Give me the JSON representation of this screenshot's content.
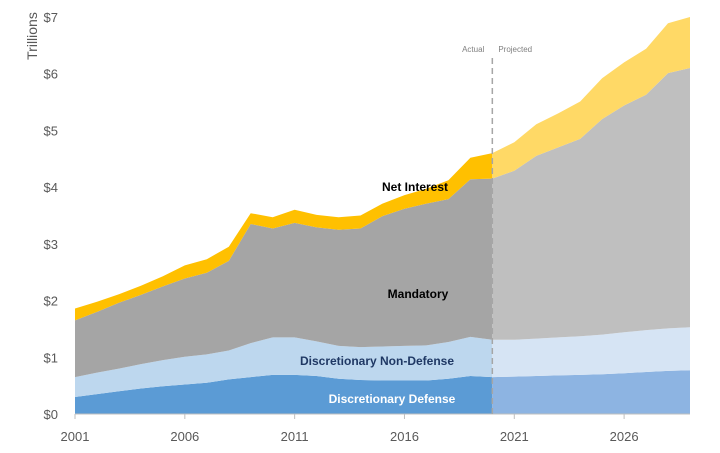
{
  "chart_data": {
    "type": "area",
    "stacked": true,
    "ylabel": "Trillions",
    "ylim": [
      0,
      7
    ],
    "xlim": [
      2001,
      2029
    ],
    "y_ticks": [
      "$0",
      "$1",
      "$2",
      "$3",
      "$4",
      "$5",
      "$6",
      "$7"
    ],
    "x_ticks": [
      "2001",
      "2006",
      "2011",
      "2016",
      "2021",
      "2026"
    ],
    "x_tick_values": [
      2001,
      2006,
      2011,
      2016,
      2021,
      2026
    ],
    "divider_year": 2020,
    "divider_labels": {
      "left": "Actual",
      "right": "Projected"
    },
    "x": [
      2001,
      2002,
      2003,
      2004,
      2005,
      2006,
      2007,
      2008,
      2009,
      2010,
      2011,
      2012,
      2013,
      2014,
      2015,
      2016,
      2017,
      2018,
      2019,
      2020,
      2021,
      2022,
      2023,
      2024,
      2025,
      2026,
      2027,
      2028,
      2029
    ],
    "series": [
      {
        "name": "Discretionary Defense",
        "values": [
          0.3,
          0.35,
          0.4,
          0.45,
          0.49,
          0.52,
          0.55,
          0.61,
          0.65,
          0.69,
          0.69,
          0.67,
          0.62,
          0.6,
          0.59,
          0.59,
          0.59,
          0.62,
          0.67,
          0.65,
          0.66,
          0.67,
          0.68,
          0.69,
          0.7,
          0.72,
          0.74,
          0.76,
          0.77
        ]
      },
      {
        "name": "Discretionary Non-Defense",
        "values": [
          0.35,
          0.38,
          0.4,
          0.43,
          0.46,
          0.49,
          0.5,
          0.51,
          0.6,
          0.66,
          0.66,
          0.61,
          0.58,
          0.58,
          0.6,
          0.61,
          0.62,
          0.65,
          0.69,
          0.66,
          0.65,
          0.66,
          0.67,
          0.68,
          0.7,
          0.72,
          0.74,
          0.75,
          0.76
        ]
      },
      {
        "name": "Mandatory",
        "values": [
          1.0,
          1.07,
          1.16,
          1.22,
          1.3,
          1.38,
          1.44,
          1.58,
          2.1,
          1.92,
          2.02,
          2.01,
          2.05,
          2.09,
          2.3,
          2.42,
          2.5,
          2.52,
          2.78,
          2.84,
          2.98,
          3.22,
          3.35,
          3.48,
          3.8,
          4.0,
          4.15,
          4.5,
          4.57
        ]
      },
      {
        "name": "Net Interest",
        "values": [
          0.21,
          0.18,
          0.15,
          0.16,
          0.18,
          0.23,
          0.24,
          0.25,
          0.19,
          0.2,
          0.23,
          0.22,
          0.22,
          0.23,
          0.22,
          0.24,
          0.26,
          0.33,
          0.38,
          0.45,
          0.5,
          0.56,
          0.6,
          0.66,
          0.72,
          0.76,
          0.81,
          0.88,
          0.9
        ]
      }
    ],
    "colors": {
      "actual": [
        "#5b9bd5",
        "#bdd7ee",
        "#a5a5a5",
        "#ffc000"
      ],
      "projected": [
        "#8db4e2",
        "#d6e4f4",
        "#bfbfbf",
        "#ffd966"
      ]
    },
    "label_colors": [
      "#ffffff",
      "#1f3864",
      "#000000",
      "#000000"
    ]
  }
}
